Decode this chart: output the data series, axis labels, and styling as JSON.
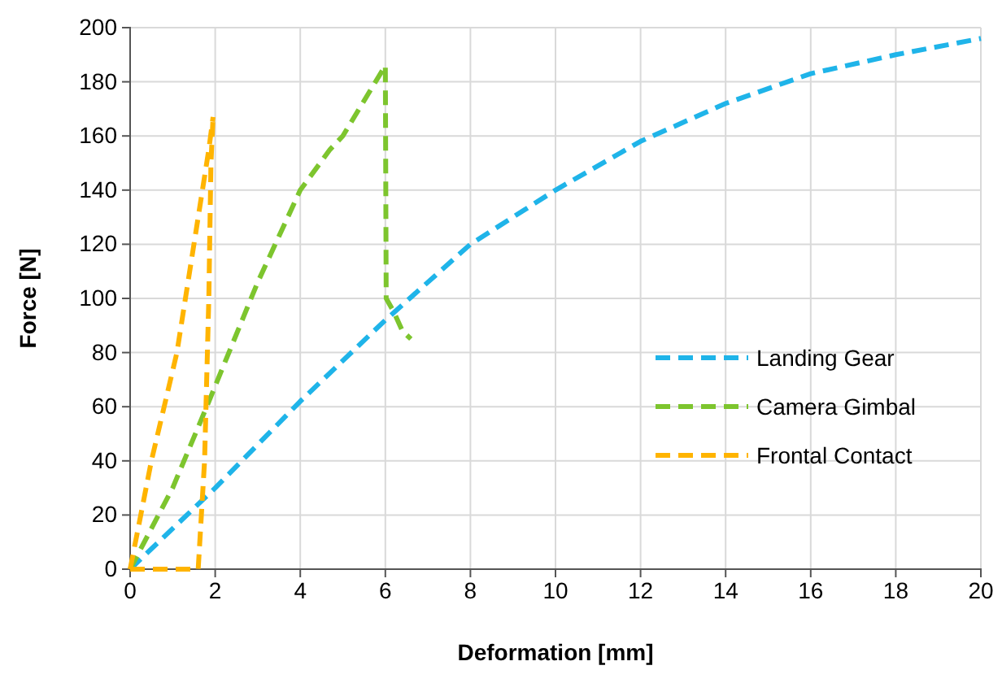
{
  "chart_data": {
    "type": "line",
    "xlabel": "Deformation [mm]",
    "ylabel": "Force [N]",
    "xlim": [
      0,
      20
    ],
    "xticks": [
      0,
      2,
      4,
      6,
      8,
      10,
      12,
      14,
      16,
      18,
      20
    ],
    "ylim": [
      0,
      200
    ],
    "yticks": [
      0,
      20,
      40,
      60,
      80,
      100,
      120,
      140,
      160,
      180,
      200
    ],
    "grid": true,
    "legend": "bottom right",
    "line_style": "dashed",
    "marker": "none",
    "series": [
      {
        "name": "Landing Gear",
        "color": "#1fb4e9",
        "x": [
          0,
          2,
          4,
          6,
          8,
          10,
          12,
          14,
          16,
          18,
          20
        ],
        "values": [
          0,
          30,
          62,
          92,
          120,
          140,
          158,
          172,
          183,
          190,
          196
        ]
      },
      {
        "name": "Camera Gimbal",
        "color": "#7dc52e",
        "x": [
          0,
          1,
          1.8,
          3,
          4,
          4.7,
          5,
          6,
          6.02,
          6.2,
          6.4,
          6.6
        ],
        "values": [
          0,
          30,
          60,
          106,
          140,
          155,
          160,
          186,
          100,
          95,
          88,
          85
        ]
      },
      {
        "name": "Frontal Contact",
        "color": "#ffb400",
        "x": [
          0,
          0.5,
          1.1,
          1.7,
          1.85,
          1.95
        ],
        "values": [
          0,
          40,
          80,
          140,
          155,
          167
        ]
      },
      {
        "color": "#ffb400",
        "x": [
          0,
          1.6,
          1.75,
          1.85,
          1.9,
          1.95
        ],
        "values": [
          0,
          0,
          40,
          100,
          150,
          167
        ]
      }
    ]
  }
}
